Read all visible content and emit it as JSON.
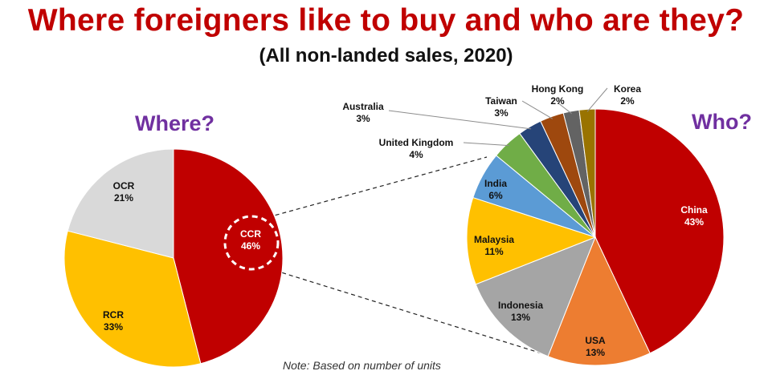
{
  "title": "Where foreigners like to buy and who are they?",
  "subtitle": "(All non-landed sales, 2020)",
  "note": "Note: Based on number of units",
  "chart_data": [
    {
      "type": "pie",
      "title": "Where?",
      "slices": [
        {
          "label": "CCR",
          "value": 46,
          "display": "46%",
          "color": "#c00000"
        },
        {
          "label": "RCR",
          "value": 33,
          "display": "33%",
          "color": "#ffc000"
        },
        {
          "label": "OCR",
          "value": 21,
          "display": "21%",
          "color": "#d9d9d9"
        }
      ]
    },
    {
      "type": "pie",
      "title": "Who?",
      "slices": [
        {
          "label": "China",
          "value": 43,
          "display": "43%",
          "color": "#c00000"
        },
        {
          "label": "USA",
          "value": 13,
          "display": "13%",
          "color": "#ed7d31"
        },
        {
          "label": "Indonesia",
          "value": 13,
          "display": "13%",
          "color": "#a5a5a5"
        },
        {
          "label": "Malaysia",
          "value": 11,
          "display": "11%",
          "color": "#ffc000"
        },
        {
          "label": "India",
          "value": 6,
          "display": "6%",
          "color": "#5b9bd5"
        },
        {
          "label": "United Kingdom",
          "value": 4,
          "display": "4%",
          "color": "#70ad47"
        },
        {
          "label": "Australia",
          "value": 3,
          "display": "3%",
          "color": "#264478"
        },
        {
          "label": "Taiwan",
          "value": 3,
          "display": "3%",
          "color": "#9e480e"
        },
        {
          "label": "Hong Kong",
          "value": 2,
          "display": "2%",
          "color": "#636363"
        },
        {
          "label": "Korea",
          "value": 2,
          "display": "2%",
          "color": "#997300"
        }
      ]
    }
  ]
}
